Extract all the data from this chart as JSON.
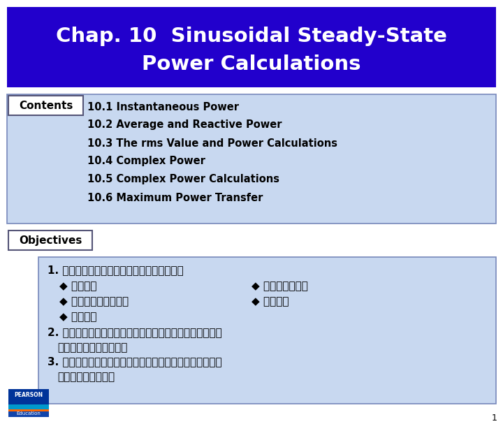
{
  "title_line1": "Chap. 10  Sinusoidal Steady-State",
  "title_line2": "Power Calculations",
  "title_bg": "#2200CC",
  "title_text_color": "#FFFFFF",
  "bg_color": "#FFFFFF",
  "contents_label": "Contents",
  "contents_items": [
    "10.1 Instantaneous Power",
    "10.2 Average and Reactive Power",
    "10.3 The rms Value and Power Calculations",
    "10.4 Complex Power",
    "10.5 Complex Power Calculations",
    "10.6 Maximum Power Transfer"
  ],
  "contents_box_bg": "#C8D8F0",
  "contents_label_bg": "#FFFFFF",
  "contents_box_border": "#7788BB",
  "objectives_label": "Objectives",
  "objectives_box_bg": "#C8D8F0",
  "obj_line1": "1. 了解交流功率觀念、相互關係及如何計算：",
  "obj_sub1a": "◆ 瞬時功率",
  "obj_sub1b": "◆ 平均（實）功率",
  "obj_sub2a": "◆ 無效功率（虛功率）",
  "obj_sub2b": "◆ 複數功率",
  "obj_sub3": "◆ 功率因數",
  "obj_line2a": "2. 了解最大實功率傳送至一交流電路負載之情況，並能計算",
  "obj_line2b": "在此條件下之負載阻抗。",
  "obj_line3a": "3. 在具有線性變壓器及理想變壓器之交流電路中，能計算所",
  "obj_line3b": "有形式之交流功率。",
  "page_num": "1",
  "pearson_blue": "#003399",
  "pearson_teal": "#0099CC",
  "pearson_orange": "#FF6600"
}
